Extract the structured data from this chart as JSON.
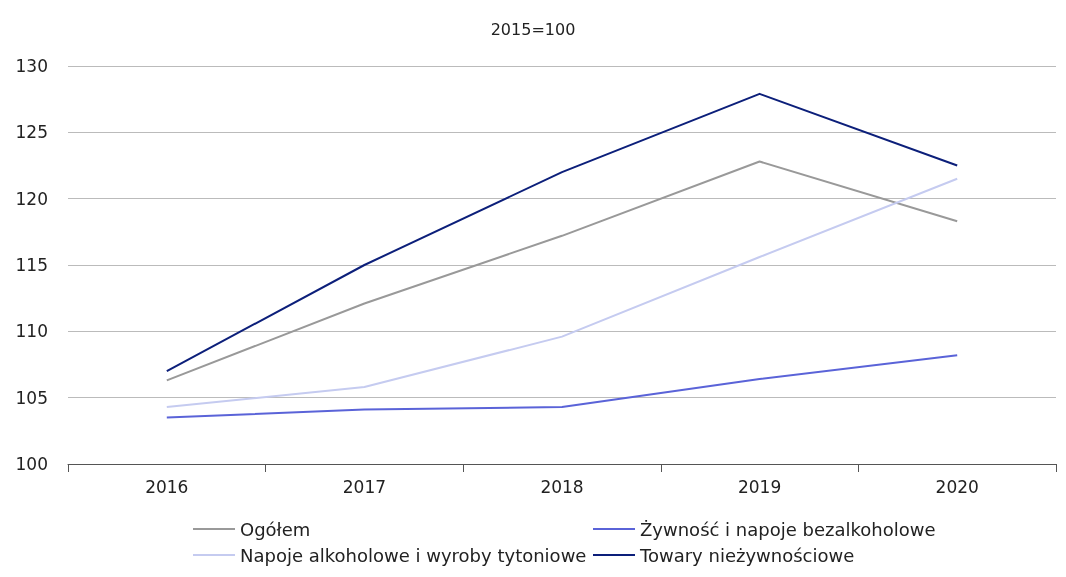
{
  "chart_data": {
    "type": "line",
    "title": "2015=100",
    "categories": [
      "2016",
      "2017",
      "2018",
      "2019",
      "2020"
    ],
    "series": [
      {
        "name": "Ogółem",
        "color": "#999999",
        "values": [
          106.3,
          112.1,
          117.2,
          122.8,
          118.3
        ]
      },
      {
        "name": "Napoje alkoholowe i wyroby tytoniowe",
        "color": "#c5cbf0",
        "values": [
          104.3,
          105.8,
          109.6,
          115.6,
          121.5
        ]
      },
      {
        "name": "Żywność i napoje bezalkoholowe",
        "color": "#5a63d8",
        "values": [
          103.5,
          104.1,
          104.3,
          106.4,
          108.2
        ]
      },
      {
        "name": "Towary nieżywnościowe",
        "color": "#0c1f7a",
        "values": [
          107.0,
          115.0,
          122.0,
          127.9,
          122.5
        ]
      }
    ],
    "ylim": [
      100,
      130
    ],
    "yticks": [
      100,
      105,
      110,
      115,
      120,
      125,
      130
    ],
    "grid": "y",
    "legend": "bottom",
    "marker": "none",
    "line_style": "solid"
  }
}
